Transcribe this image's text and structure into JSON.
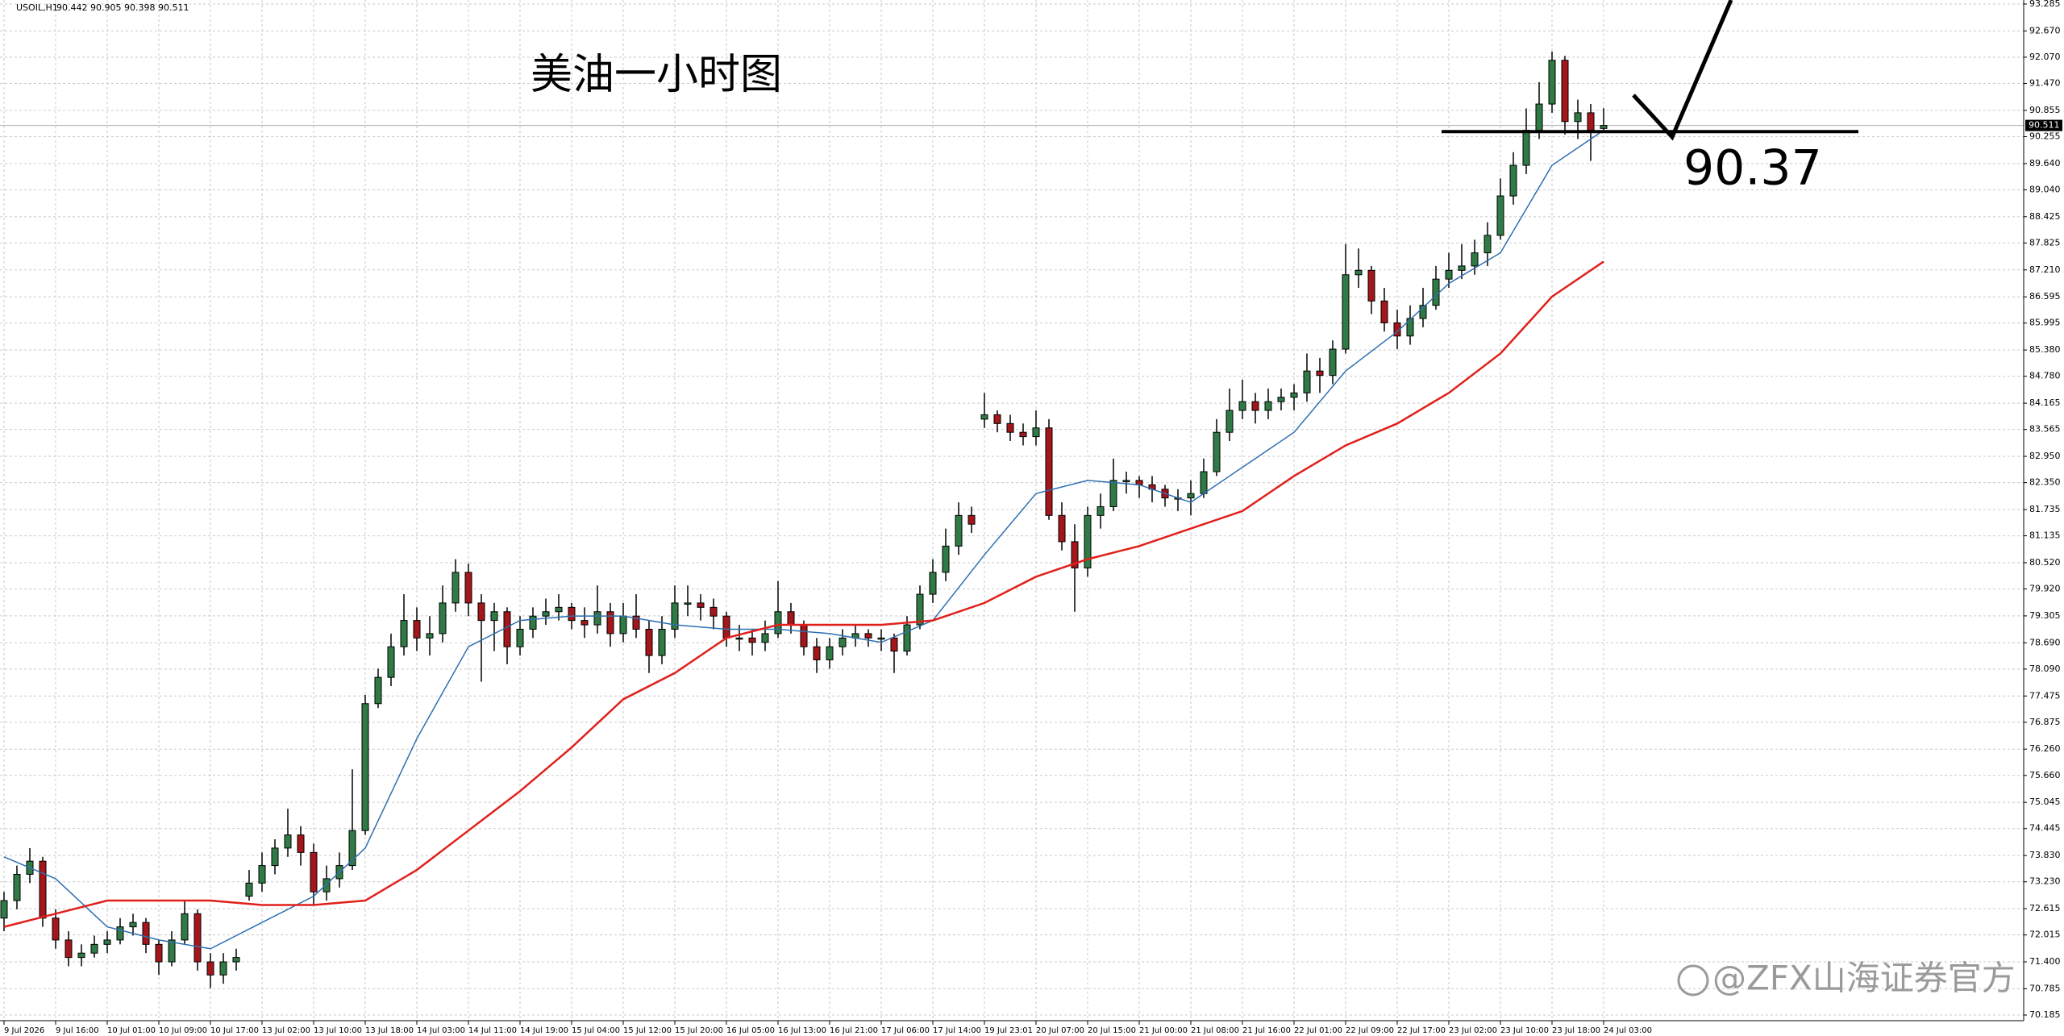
{
  "chart_data": {
    "type": "candlestick",
    "symbol": "USOIL,H1",
    "title": "美油一小时图",
    "annotation": 90.37,
    "watermark": "@ZFX山海证券官方",
    "up_color": "#2f7a45",
    "down_color": "#a4161a",
    "grid": true,
    "ylim": [
      70.185,
      93.285
    ],
    "yticks": [
      93.285,
      {
        "value": 92.67,
        "label": "92.670"
      },
      {
        "value": 92.07,
        "label": "92.070"
      },
      {
        "value": 91.47,
        "label": "91.470"
      },
      90.855,
      90.255,
      {
        "value": 89.64,
        "label": "89.640"
      },
      {
        "value": 89.04,
        "label": "89.040"
      },
      88.425,
      87.825,
      {
        "value": 87.21,
        "label": "87.210"
      },
      86.595,
      85.995,
      {
        "value": 85.38,
        "label": "85.380"
      },
      {
        "value": 84.78,
        "label": "84.780"
      },
      84.165,
      83.565,
      {
        "value": 82.95,
        "label": "82.950"
      },
      {
        "value": 82.35,
        "label": "82.350"
      },
      81.735,
      81.135,
      {
        "value": 80.52,
        "label": "80.520"
      },
      {
        "value": 79.92,
        "label": "79.920"
      },
      79.305,
      {
        "value": 78.69,
        "label": "78.690"
      },
      {
        "value": 78.09,
        "label": "78.090"
      },
      77.475,
      76.875,
      {
        "value": 76.26,
        "label": "76.260"
      },
      {
        "value": 75.66,
        "label": "75.660"
      },
      75.045,
      74.445,
      {
        "value": 73.83,
        "label": "73.830"
      },
      {
        "value": 73.23,
        "label": "73.230"
      },
      72.615,
      72.015,
      {
        "value": 71.4,
        "label": "71.400"
      },
      70.785,
      70.185
    ],
    "x_labels": [
      "9 Jul 2026",
      "9 Jul 16:00",
      "10 Jul 01:00",
      "10 Jul 09:00",
      "10 Jul 17:00",
      "13 Jul 02:00",
      "13 Jul 10:00",
      "13 Jul 18:00",
      "14 Jul 03:00",
      "14 Jul 11:00",
      "14 Jul 19:00",
      "15 Jul 04:00",
      "15 Jul 12:00",
      "15 Jul 20:00",
      "16 Jul 05:00",
      "16 Jul 13:00",
      "16 Jul 21:00",
      "17 Jul 06:00",
      "17 Jul 14:00",
      "19 Jul 23:01",
      "20 Jul 07:00",
      "20 Jul 15:00",
      "21 Jul 00:00",
      "21 Jul 08:00",
      "21 Jul 16:00",
      "22 Jul 01:00",
      "22 Jul 09:00",
      "22 Jul 17:00",
      "23 Jul 02:00",
      "23 Jul 10:00",
      "23 Jul 18:00",
      "24 Jul 03:00"
    ],
    "candles": [
      [
        72.4,
        73.0,
        72.1,
        72.8
      ],
      [
        72.8,
        73.6,
        72.6,
        73.4
      ],
      [
        73.4,
        74.0,
        73.2,
        73.7
      ],
      [
        73.7,
        73.8,
        72.2,
        72.4
      ],
      [
        72.4,
        72.6,
        71.7,
        71.9
      ],
      [
        71.9,
        72.1,
        71.3,
        71.5
      ],
      [
        71.5,
        71.8,
        71.3,
        71.6
      ],
      [
        71.6,
        72.0,
        71.5,
        71.8
      ],
      [
        71.8,
        72.1,
        71.6,
        71.9
      ],
      [
        71.9,
        72.4,
        71.8,
        72.2
      ],
      [
        72.2,
        72.5,
        72.0,
        72.3
      ],
      [
        72.3,
        72.4,
        71.6,
        71.8
      ],
      [
        71.8,
        71.9,
        71.1,
        71.4
      ],
      [
        71.4,
        72.1,
        71.3,
        71.9
      ],
      [
        71.9,
        72.8,
        71.8,
        72.5
      ],
      [
        72.5,
        72.6,
        71.2,
        71.4
      ],
      [
        71.4,
        71.6,
        70.8,
        71.1
      ],
      [
        71.1,
        71.6,
        70.9,
        71.4
      ],
      [
        71.4,
        71.7,
        71.2,
        71.5
      ],
      [
        72.9,
        73.5,
        72.8,
        73.2
      ],
      [
        73.2,
        73.9,
        73.0,
        73.6
      ],
      [
        73.6,
        74.2,
        73.4,
        74.0
      ],
      [
        74.0,
        74.9,
        73.8,
        74.3
      ],
      [
        74.3,
        74.5,
        73.6,
        73.9
      ],
      [
        73.9,
        74.1,
        72.7,
        73.0
      ],
      [
        73.0,
        73.6,
        72.8,
        73.3
      ],
      [
        73.3,
        73.9,
        73.1,
        73.6
      ],
      [
        73.6,
        75.8,
        73.5,
        74.4
      ],
      [
        74.4,
        77.5,
        74.3,
        77.3
      ],
      [
        77.3,
        78.1,
        77.2,
        77.9
      ],
      [
        77.9,
        78.9,
        77.7,
        78.6
      ],
      [
        78.6,
        79.8,
        78.4,
        79.2
      ],
      [
        79.2,
        79.5,
        78.5,
        78.8
      ],
      [
        78.8,
        79.3,
        78.4,
        78.9
      ],
      [
        78.9,
        80.0,
        78.7,
        79.6
      ],
      [
        79.6,
        80.6,
        79.4,
        80.3
      ],
      [
        80.3,
        80.5,
        79.3,
        79.6
      ],
      [
        79.6,
        79.8,
        77.8,
        79.2
      ],
      [
        79.2,
        79.6,
        78.5,
        79.4
      ],
      [
        79.4,
        79.5,
        78.2,
        78.6
      ],
      [
        78.6,
        79.3,
        78.4,
        79.0
      ],
      [
        79.0,
        79.5,
        78.8,
        79.3
      ],
      [
        79.3,
        79.7,
        79.1,
        79.4
      ],
      [
        79.4,
        79.8,
        79.2,
        79.5
      ],
      [
        79.5,
        79.6,
        79.0,
        79.2
      ],
      [
        79.2,
        79.5,
        78.8,
        79.1
      ],
      [
        79.1,
        80.0,
        78.9,
        79.4
      ],
      [
        79.4,
        79.6,
        78.6,
        78.9
      ],
      [
        78.9,
        79.6,
        78.7,
        79.3
      ],
      [
        79.3,
        79.8,
        78.8,
        79.0
      ],
      [
        79.0,
        79.2,
        78.0,
        78.4
      ],
      [
        78.4,
        79.3,
        78.2,
        79.0
      ],
      [
        79.0,
        80.0,
        78.8,
        79.6
      ],
      [
        79.6,
        80.0,
        79.3,
        79.6
      ],
      [
        79.6,
        79.8,
        79.2,
        79.5
      ],
      [
        79.5,
        79.7,
        79.0,
        79.3
      ],
      [
        79.3,
        79.4,
        78.6,
        78.8
      ],
      [
        78.8,
        79.1,
        78.5,
        78.8
      ],
      [
        78.8,
        79.0,
        78.4,
        78.7
      ],
      [
        78.7,
        79.2,
        78.5,
        78.9
      ],
      [
        78.9,
        80.1,
        78.8,
        79.4
      ],
      [
        79.4,
        79.6,
        78.9,
        79.1
      ],
      [
        79.1,
        79.2,
        78.4,
        78.6
      ],
      [
        78.6,
        78.8,
        78.0,
        78.3
      ],
      [
        78.3,
        78.8,
        78.1,
        78.6
      ],
      [
        78.6,
        79.0,
        78.4,
        78.8
      ],
      [
        78.8,
        79.1,
        78.6,
        78.9
      ],
      [
        78.9,
        79.0,
        78.6,
        78.8
      ],
      [
        78.8,
        79.0,
        78.5,
        78.8
      ],
      [
        78.8,
        78.9,
        78.0,
        78.5
      ],
      [
        78.5,
        79.3,
        78.4,
        79.1
      ],
      [
        79.1,
        80.0,
        79.0,
        79.8
      ],
      [
        79.8,
        80.6,
        79.6,
        80.3
      ],
      [
        80.3,
        81.3,
        80.1,
        80.9
      ],
      [
        80.9,
        81.9,
        80.7,
        81.6
      ],
      [
        81.6,
        81.8,
        81.2,
        81.4
      ],
      [
        83.8,
        84.4,
        83.6,
        83.9
      ],
      [
        83.9,
        84.0,
        83.5,
        83.7
      ],
      [
        83.7,
        83.9,
        83.3,
        83.5
      ],
      [
        83.5,
        83.7,
        83.2,
        83.4
      ],
      [
        83.4,
        84.0,
        83.2,
        83.6
      ],
      [
        83.6,
        83.8,
        81.5,
        81.6
      ],
      [
        81.6,
        81.9,
        80.8,
        81.0
      ],
      [
        81.0,
        81.4,
        79.4,
        80.4
      ],
      [
        80.4,
        81.8,
        80.2,
        81.6
      ],
      [
        81.6,
        82.1,
        81.3,
        81.8
      ],
      [
        81.8,
        82.9,
        81.7,
        82.4
      ],
      [
        82.4,
        82.6,
        82.1,
        82.4
      ],
      [
        82.4,
        82.5,
        82.0,
        82.3
      ],
      [
        82.3,
        82.5,
        81.9,
        82.2
      ],
      [
        82.2,
        82.3,
        81.8,
        82.0
      ],
      [
        82.0,
        82.2,
        81.7,
        82.0
      ],
      [
        82.0,
        82.4,
        81.6,
        82.1
      ],
      [
        82.1,
        82.9,
        82.0,
        82.6
      ],
      [
        82.6,
        83.8,
        82.5,
        83.5
      ],
      [
        83.5,
        84.5,
        83.3,
        84.0
      ],
      [
        84.0,
        84.7,
        83.8,
        84.2
      ],
      [
        84.2,
        84.4,
        83.7,
        84.0
      ],
      [
        84.0,
        84.5,
        83.8,
        84.2
      ],
      [
        84.2,
        84.5,
        84.0,
        84.3
      ],
      [
        84.3,
        84.6,
        84.0,
        84.4
      ],
      [
        84.4,
        85.3,
        84.2,
        84.9
      ],
      [
        84.9,
        85.2,
        84.4,
        84.8
      ],
      [
        84.8,
        85.6,
        84.6,
        85.4
      ],
      [
        85.4,
        87.8,
        85.3,
        87.1
      ],
      [
        87.1,
        87.7,
        86.8,
        87.2
      ],
      [
        87.2,
        87.3,
        86.2,
        86.5
      ],
      [
        86.5,
        86.8,
        85.8,
        86.0
      ],
      [
        86.0,
        86.3,
        85.4,
        85.7
      ],
      [
        85.7,
        86.4,
        85.5,
        86.1
      ],
      [
        86.1,
        86.8,
        85.9,
        86.4
      ],
      [
        86.4,
        87.3,
        86.3,
        87.0
      ],
      [
        87.0,
        87.6,
        86.8,
        87.2
      ],
      [
        87.2,
        87.8,
        87.0,
        87.3
      ],
      [
        87.3,
        87.9,
        87.1,
        87.6
      ],
      [
        87.6,
        88.3,
        87.3,
        88.0
      ],
      [
        88.0,
        89.3,
        87.9,
        88.9
      ],
      [
        88.9,
        89.9,
        88.7,
        89.6
      ],
      [
        89.6,
        90.9,
        89.4,
        90.4
      ],
      [
        90.4,
        91.5,
        90.2,
        91.0
      ],
      [
        91.0,
        92.2,
        90.8,
        92.0
      ],
      [
        92.0,
        92.1,
        90.3,
        90.6
      ],
      [
        90.6,
        91.1,
        90.2,
        90.8
      ],
      [
        90.8,
        91.0,
        89.7,
        90.4
      ],
      [
        90.442,
        90.905,
        90.398,
        90.511
      ]
    ],
    "series": [
      {
        "color": "#2d6fb0",
        "x": [
          0,
          4,
          8,
          12,
          16,
          20,
          24,
          28,
          32,
          36,
          40,
          44,
          48,
          52,
          56,
          60,
          64,
          68,
          72,
          76,
          80,
          84,
          88,
          92,
          96,
          100,
          104,
          108,
          112,
          116,
          120,
          124
        ],
        "values": [
          73.8,
          73.3,
          72.2,
          71.9,
          71.7,
          72.3,
          72.9,
          74.0,
          76.5,
          78.6,
          79.2,
          79.3,
          79.3,
          79.1,
          79.0,
          79.0,
          78.9,
          78.7,
          79.2,
          80.7,
          82.1,
          82.4,
          82.3,
          81.9,
          82.7,
          83.5,
          84.9,
          85.8,
          86.9,
          87.6,
          89.6,
          90.4
        ]
      },
      {
        "color": "#e0201b",
        "x": [
          0,
          4,
          8,
          12,
          16,
          20,
          24,
          28,
          32,
          36,
          40,
          44,
          48,
          52,
          56,
          60,
          64,
          68,
          72,
          76,
          80,
          84,
          88,
          92,
          96,
          100,
          104,
          108,
          112,
          116,
          120,
          124
        ],
        "values": [
          72.2,
          72.5,
          72.8,
          72.8,
          72.8,
          72.7,
          72.7,
          72.8,
          73.5,
          74.4,
          75.3,
          76.3,
          77.4,
          78.0,
          78.8,
          79.1,
          79.1,
          79.1,
          79.2,
          79.6,
          80.2,
          80.6,
          80.9,
          81.3,
          81.7,
          82.5,
          83.2,
          83.7,
          84.4,
          85.3,
          86.6,
          87.4
        ]
      }
    ]
  }
}
